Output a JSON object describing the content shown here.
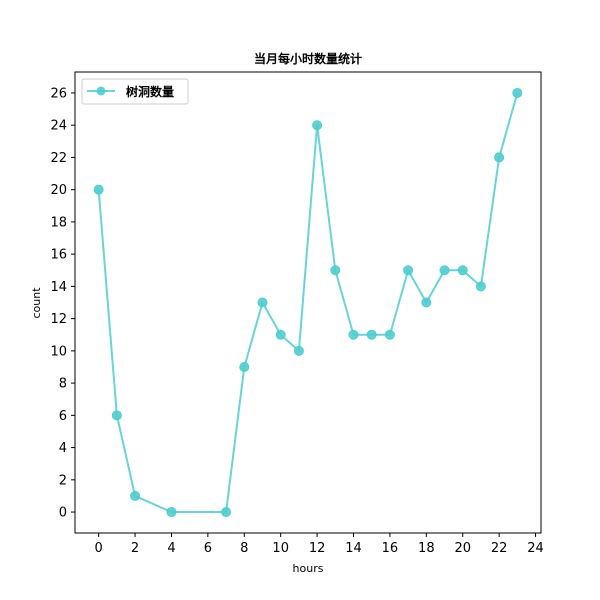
{
  "chart_data": {
    "type": "line",
    "title": "当月每小时数量统计",
    "xlabel": "hours",
    "ylabel": "count",
    "xlim": [
      -1.3,
      24.3
    ],
    "ylim": [
      -1.3,
      27.3
    ],
    "xticks": [
      0,
      2,
      4,
      6,
      8,
      10,
      12,
      14,
      16,
      18,
      20,
      22,
      24
    ],
    "yticks": [
      0,
      2,
      4,
      6,
      8,
      10,
      12,
      14,
      16,
      18,
      20,
      22,
      24,
      26
    ],
    "grid": false,
    "legend_position": "top-left",
    "series": [
      {
        "name": "树洞数量",
        "color": "#4ecdd0",
        "marker": "circle",
        "x": [
          0,
          1,
          2,
          4,
          7,
          8,
          9,
          10,
          11,
          12,
          13,
          14,
          15,
          16,
          17,
          18,
          19,
          20,
          21,
          22,
          23
        ],
        "y": [
          20,
          6,
          1,
          0,
          0,
          9,
          13,
          11,
          10,
          24,
          15,
          11,
          11,
          11,
          15,
          13,
          15,
          15,
          14,
          22,
          26
        ]
      }
    ]
  }
}
